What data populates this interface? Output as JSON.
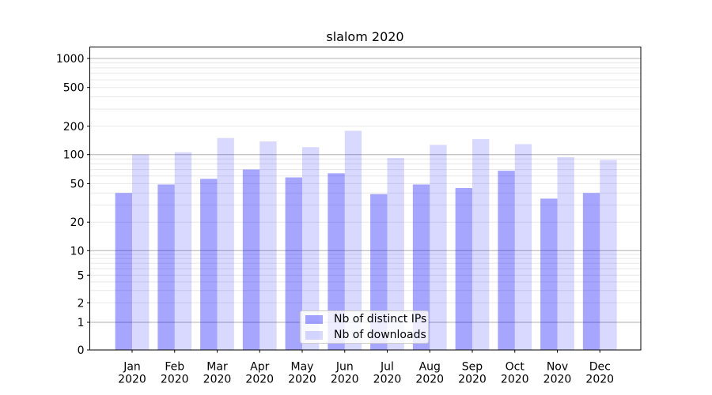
{
  "chart_data": {
    "type": "bar",
    "title": "slalom 2020",
    "categories": [
      "Jan 2020",
      "Feb 2020",
      "Mar 2020",
      "Apr 2020",
      "May 2020",
      "Jun 2020",
      "Jul 2020",
      "Aug 2020",
      "Sep 2020",
      "Oct 2020",
      "Nov 2020",
      "Dec 2020"
    ],
    "series": [
      {
        "name": "Nb of distinct IPs",
        "fill": "rgba(0,0,255,0.35)",
        "color_on_white": "#a6a6ff",
        "values": [
          40,
          49,
          56,
          70,
          58,
          64,
          39,
          49,
          45,
          68,
          35,
          40
        ]
      },
      {
        "name": "Nb of downloads",
        "fill": "rgba(0,0,255,0.15)",
        "color_on_white": "#d9d9ff",
        "values": [
          100,
          106,
          150,
          138,
          120,
          179,
          92,
          127,
          146,
          129,
          94,
          88
        ]
      }
    ],
    "yticks": [
      0,
      1,
      2,
      5,
      10,
      20,
      50,
      100,
      200,
      500,
      1000
    ],
    "ylim": [
      0,
      1400
    ],
    "yscale": "log-like (compressed below 10, linear 0-1)",
    "grid": true,
    "legend_position": "lower center inside plot",
    "xlabel": "",
    "ylabel": ""
  },
  "colors": {
    "background": "#ffffff",
    "grid_minor": "#e8e8e8",
    "grid_major": "#b0b0b0",
    "spine": "#000000",
    "text": "#000000",
    "legend_border": "#cccccc",
    "legend_background": "rgba(255,255,255,0.8)"
  }
}
